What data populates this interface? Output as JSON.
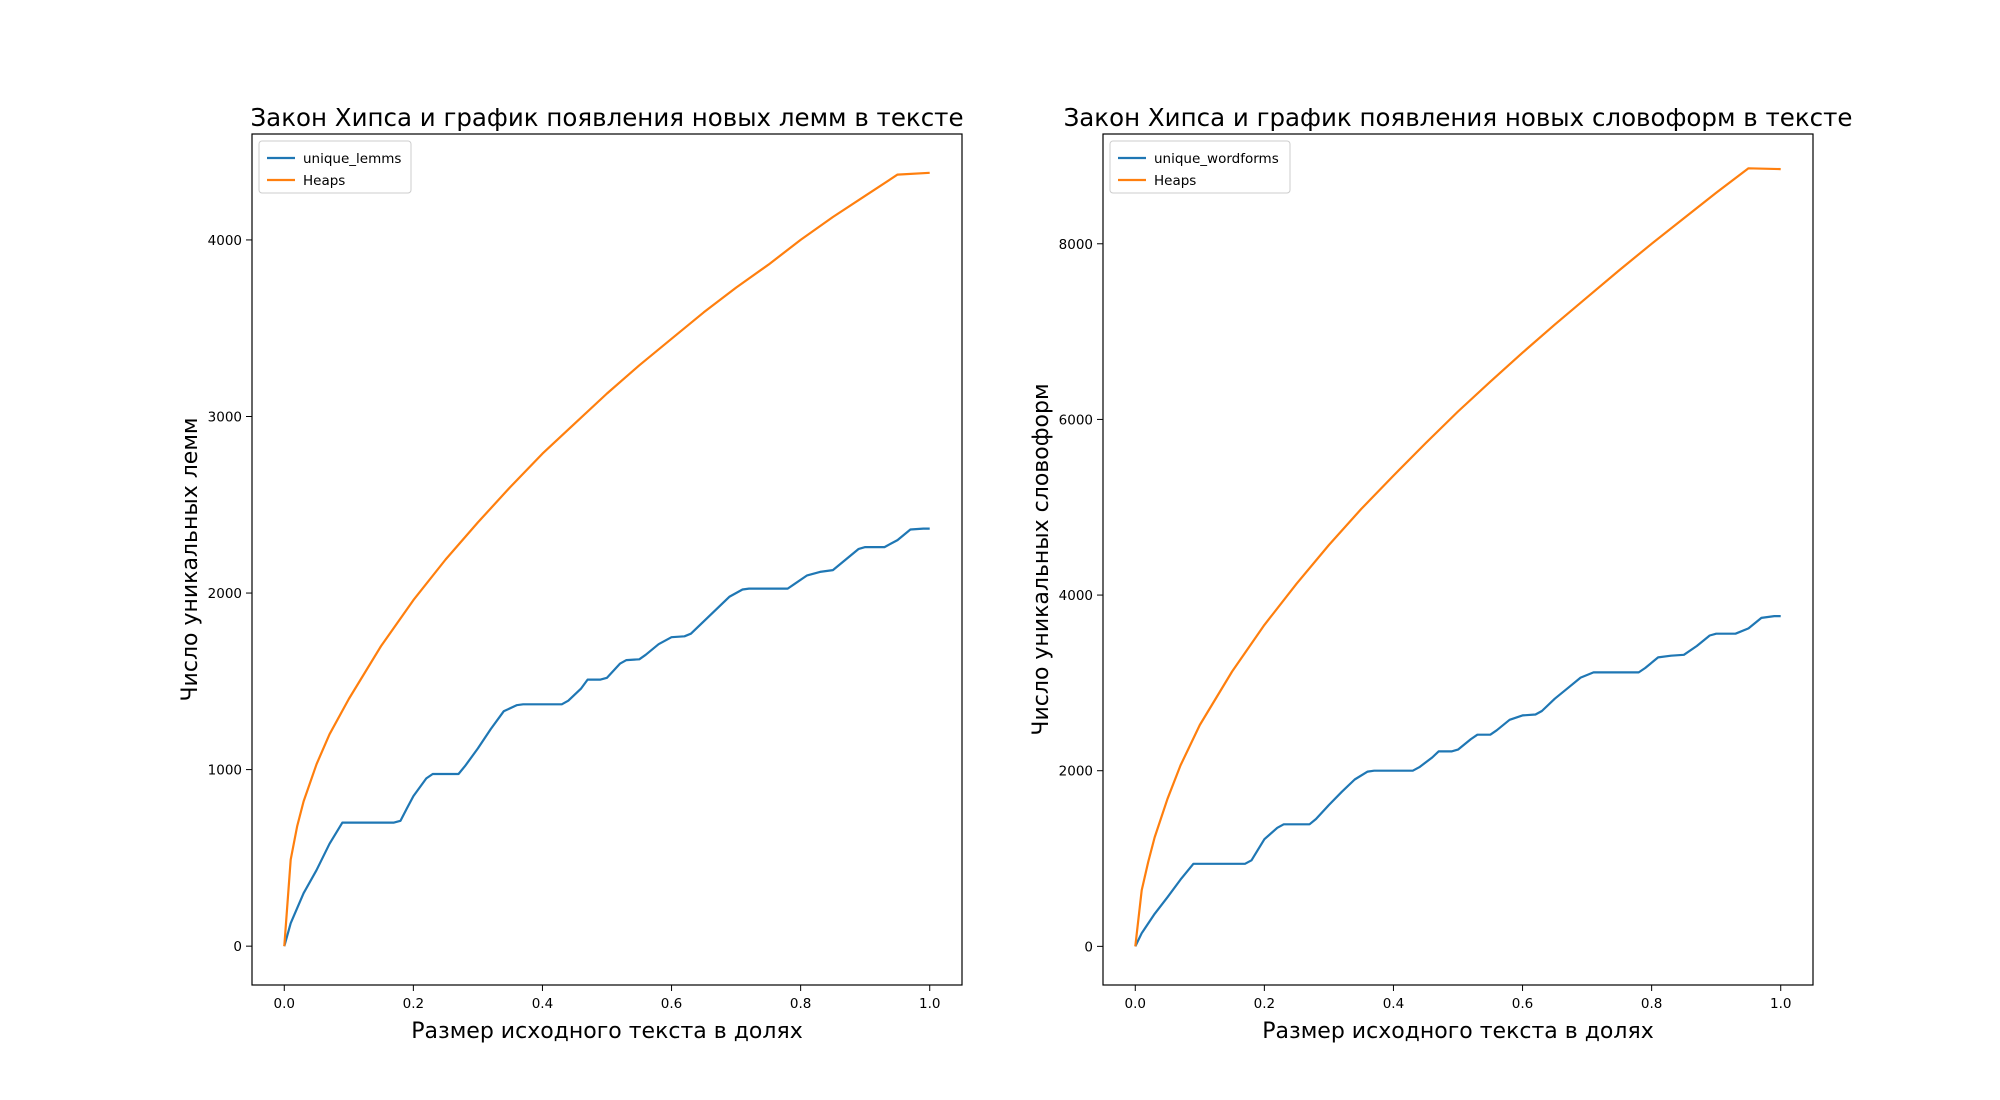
{
  "chart_data": [
    {
      "type": "line",
      "title": "Закон Хипса и график появления новых лемм в тексте",
      "xlabel": "Размер исходного текста в долях",
      "ylabel": "Число уникальных лемм",
      "xlim": [
        -0.05,
        1.05
      ],
      "ylim": [
        -220,
        4600
      ],
      "xticks": [
        "0.0",
        "0.2",
        "0.4",
        "0.6",
        "0.8",
        "1.0"
      ],
      "yticks": [
        "0",
        "1000",
        "2000",
        "3000",
        "4000"
      ],
      "legend_position": "upper-left",
      "grid": false,
      "series": [
        {
          "name": "unique_lemms",
          "color": "#1f77b4",
          "x": [
            0,
            0.01,
            0.03,
            0.05,
            0.07,
            0.09,
            0.12,
            0.15,
            0.17,
            0.18,
            0.19,
            0.2,
            0.22,
            0.23,
            0.25,
            0.27,
            0.28,
            0.3,
            0.32,
            0.34,
            0.36,
            0.37,
            0.4,
            0.43,
            0.44,
            0.46,
            0.47,
            0.49,
            0.5,
            0.52,
            0.53,
            0.55,
            0.56,
            0.58,
            0.6,
            0.62,
            0.63,
            0.65,
            0.67,
            0.69,
            0.71,
            0.72,
            0.75,
            0.78,
            0.79,
            0.81,
            0.83,
            0.85,
            0.87,
            0.89,
            0.9,
            0.93,
            0.95,
            0.97,
            0.99,
            1.0
          ],
          "y": [
            0,
            130,
            300,
            430,
            580,
            700,
            700,
            700,
            700,
            710,
            780,
            850,
            950,
            975,
            975,
            975,
            1020,
            1120,
            1230,
            1330,
            1365,
            1370,
            1370,
            1370,
            1390,
            1460,
            1510,
            1510,
            1520,
            1600,
            1620,
            1625,
            1650,
            1710,
            1750,
            1755,
            1770,
            1840,
            1910,
            1980,
            2020,
            2025,
            2025,
            2025,
            2050,
            2100,
            2120,
            2130,
            2190,
            2250,
            2260,
            2260,
            2300,
            2360,
            2365,
            2365
          ]
        },
        {
          "name": "Heaps",
          "color": "#ff7f0e",
          "x": [
            0,
            0.01,
            0.02,
            0.03,
            0.05,
            0.07,
            0.1,
            0.15,
            0.2,
            0.25,
            0.3,
            0.35,
            0.4,
            0.45,
            0.5,
            0.55,
            0.6,
            0.65,
            0.7,
            0.75,
            0.8,
            0.85,
            0.9,
            0.95,
            1.0
          ],
          "y": [
            0,
            490,
            680,
            820,
            1030,
            1200,
            1400,
            1700,
            1960,
            2190,
            2400,
            2600,
            2790,
            2960,
            3130,
            3290,
            3440,
            3590,
            3730,
            3860,
            4000,
            4130,
            4250,
            4370,
            4380
          ]
        }
      ]
    },
    {
      "type": "line",
      "title": "Закон Хипса и график появления новых словоформ в тексте",
      "xlabel": "Размер исходного текста в долях",
      "ylabel": "Число уникальных словоформ",
      "xlim": [
        -0.05,
        1.05
      ],
      "ylim": [
        -440,
        9250
      ],
      "xticks": [
        "0.0",
        "0.2",
        "0.4",
        "0.6",
        "0.8",
        "1.0"
      ],
      "yticks": [
        "0",
        "2000",
        "4000",
        "6000",
        "8000"
      ],
      "legend_position": "upper-left",
      "grid": false,
      "series": [
        {
          "name": "unique_wordforms",
          "color": "#1f77b4",
          "x": [
            0,
            0.01,
            0.03,
            0.05,
            0.07,
            0.09,
            0.12,
            0.15,
            0.17,
            0.18,
            0.19,
            0.2,
            0.22,
            0.23,
            0.25,
            0.27,
            0.28,
            0.3,
            0.32,
            0.34,
            0.36,
            0.37,
            0.4,
            0.43,
            0.44,
            0.46,
            0.47,
            0.49,
            0.5,
            0.52,
            0.53,
            0.55,
            0.56,
            0.58,
            0.6,
            0.62,
            0.63,
            0.65,
            0.67,
            0.69,
            0.71,
            0.72,
            0.75,
            0.78,
            0.79,
            0.81,
            0.83,
            0.85,
            0.87,
            0.89,
            0.9,
            0.93,
            0.95,
            0.97,
            0.99,
            1.0
          ],
          "y": [
            0,
            150,
            370,
            560,
            760,
            940,
            940,
            940,
            940,
            980,
            1100,
            1220,
            1350,
            1390,
            1390,
            1390,
            1450,
            1610,
            1760,
            1900,
            1990,
            2000,
            2000,
            2000,
            2040,
            2150,
            2220,
            2220,
            2240,
            2360,
            2410,
            2410,
            2460,
            2580,
            2630,
            2640,
            2680,
            2820,
            2940,
            3060,
            3120,
            3120,
            3120,
            3120,
            3170,
            3290,
            3310,
            3320,
            3420,
            3540,
            3560,
            3560,
            3620,
            3740,
            3760,
            3760
          ]
        },
        {
          "name": "Heaps",
          "color": "#ff7f0e",
          "x": [
            0,
            0.01,
            0.02,
            0.03,
            0.05,
            0.07,
            0.1,
            0.15,
            0.2,
            0.25,
            0.3,
            0.35,
            0.4,
            0.45,
            0.5,
            0.55,
            0.6,
            0.65,
            0.7,
            0.75,
            0.8,
            0.85,
            0.9,
            0.95,
            1.0
          ],
          "y": [
            0,
            640,
            960,
            1240,
            1680,
            2060,
            2520,
            3130,
            3660,
            4130,
            4570,
            4980,
            5360,
            5730,
            6090,
            6430,
            6760,
            7080,
            7390,
            7700,
            8000,
            8290,
            8580,
            8860,
            8850
          ]
        }
      ]
    }
  ]
}
